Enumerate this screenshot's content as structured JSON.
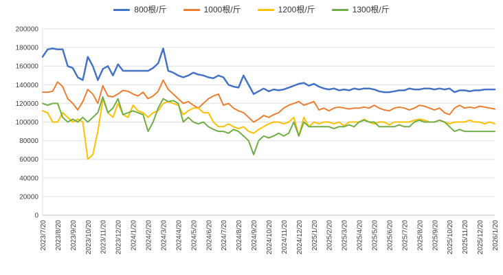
{
  "chart_data": {
    "type": "line",
    "title": "",
    "legend_position": "top",
    "grid": true,
    "points_per_label_interval": 3,
    "y_axis": {
      "min": 0,
      "max": 200000,
      "step": 20000
    },
    "x_labels": [
      "2023/7/20",
      "2023/8/20",
      "2023/9/20",
      "2023/10/20",
      "2023/11/20",
      "2023/12/20",
      "2024/1/20",
      "2024/2/20",
      "2024/3/20",
      "2024/4/20",
      "2024/5/20",
      "2024/6/20",
      "2024/7/20",
      "2024/8/20",
      "2024/9/20",
      "2024/10/20",
      "2024/11/20",
      "2024/12/20",
      "2025/1/20",
      "2025/2/20",
      "2025/3/20",
      "2025/4/20",
      "2025/5/20",
      "2025/6/20",
      "2025/7/20",
      "2025/8/20",
      "2025/9/20",
      "2025/10/20",
      "2025/11/20",
      "2025/12/20",
      "2026/1/20"
    ],
    "series": [
      {
        "name": "800根/斤",
        "color": "#4472C4",
        "width": 2.5,
        "values": [
          170000,
          178000,
          179000,
          178000,
          178000,
          160000,
          158000,
          148000,
          145000,
          170000,
          160000,
          145000,
          157000,
          160000,
          150000,
          162000,
          155000,
          155000,
          155000,
          155000,
          155000,
          155000,
          158000,
          163000,
          179000,
          155000,
          153000,
          150000,
          148000,
          150000,
          153000,
          151000,
          150000,
          148000,
          147000,
          150000,
          148000,
          140000,
          138000,
          137000,
          150000,
          140000,
          130000,
          133000,
          136000,
          133000,
          135000,
          134000,
          135000,
          137000,
          139000,
          141000,
          142000,
          139000,
          141000,
          138000,
          136000,
          135000,
          136000,
          134000,
          135000,
          134000,
          136000,
          135000,
          136000,
          136000,
          135000,
          133000,
          132000,
          132000,
          133000,
          134000,
          134000,
          136000,
          135000,
          135000,
          136000,
          136000,
          135000,
          136000,
          135000,
          136000,
          132000,
          134000,
          134000,
          133000,
          134000,
          134000,
          135000,
          135000,
          135000
        ]
      },
      {
        "name": "1000根/斤",
        "color": "#ED7D31",
        "width": 2,
        "values": [
          132000,
          132000,
          133000,
          143000,
          138000,
          125000,
          120000,
          113000,
          122000,
          135000,
          130000,
          120000,
          139000,
          128000,
          127000,
          130000,
          134000,
          133000,
          130000,
          128000,
          132000,
          125000,
          128000,
          133000,
          145000,
          135000,
          130000,
          125000,
          120000,
          122000,
          118000,
          115000,
          120000,
          125000,
          128000,
          130000,
          118000,
          120000,
          115000,
          112000,
          110000,
          105000,
          100000,
          103000,
          107000,
          105000,
          108000,
          110000,
          115000,
          118000,
          120000,
          122000,
          118000,
          120000,
          122000,
          113000,
          115000,
          112000,
          115000,
          116000,
          115000,
          114000,
          115000,
          115000,
          116000,
          115000,
          118000,
          115000,
          113000,
          112000,
          115000,
          116000,
          115000,
          113000,
          115000,
          118000,
          117000,
          115000,
          113000,
          115000,
          110000,
          108000,
          115000,
          118000,
          115000,
          116000,
          115000,
          117000,
          116000,
          115000,
          114000
        ]
      },
      {
        "name": "1200根/斤",
        "color": "#FFC000",
        "width": 2,
        "values": [
          112000,
          110000,
          100000,
          100000,
          110000,
          105000,
          100000,
          103000,
          100000,
          60000,
          65000,
          90000,
          125000,
          110000,
          105000,
          120000,
          108000,
          105000,
          118000,
          112000,
          110000,
          105000,
          110000,
          112000,
          120000,
          122000,
          120000,
          118000,
          108000,
          112000,
          115000,
          115000,
          110000,
          110000,
          100000,
          95000,
          95000,
          98000,
          95000,
          93000,
          95000,
          90000,
          88000,
          92000,
          95000,
          98000,
          100000,
          100000,
          98000,
          100000,
          105000,
          85000,
          105000,
          95000,
          100000,
          98000,
          100000,
          100000,
          98000,
          100000,
          96000,
          100000,
          100000,
          100000,
          103000,
          100000,
          98000,
          100000,
          100000,
          97000,
          100000,
          100000,
          100000,
          100000,
          102000,
          103000,
          102000,
          100000,
          100000,
          102000,
          100000,
          98000,
          100000,
          100000,
          100000,
          102000,
          100000,
          100000,
          98000,
          100000,
          98000
        ]
      },
      {
        "name": "1300根/斤",
        "color": "#70AD47",
        "width": 2,
        "values": [
          120000,
          118000,
          120000,
          120000,
          105000,
          100000,
          103000,
          100000,
          105000,
          100000,
          105000,
          110000,
          127000,
          110000,
          115000,
          125000,
          108000,
          110000,
          112000,
          110000,
          108000,
          90000,
          100000,
          115000,
          125000,
          122000,
          123000,
          120000,
          100000,
          105000,
          100000,
          98000,
          100000,
          95000,
          92000,
          90000,
          90000,
          88000,
          92000,
          90000,
          85000,
          80000,
          65000,
          80000,
          85000,
          83000,
          85000,
          88000,
          85000,
          88000,
          100000,
          85000,
          100000,
          95000,
          95000,
          95000,
          95000,
          95000,
          93000,
          95000,
          95000,
          97000,
          95000,
          100000,
          102000,
          100000,
          100000,
          95000,
          95000,
          95000,
          95000,
          97000,
          95000,
          95000,
          100000,
          102000,
          100000,
          100000,
          100000,
          102000,
          100000,
          95000,
          90000,
          92000,
          90000,
          90000,
          90000,
          90000,
          90000,
          90000,
          90000
        ]
      }
    ],
    "colors": {
      "gridline": "#e0e0e0",
      "axis": "#bfbfbf",
      "axis_text": "#404040"
    }
  }
}
